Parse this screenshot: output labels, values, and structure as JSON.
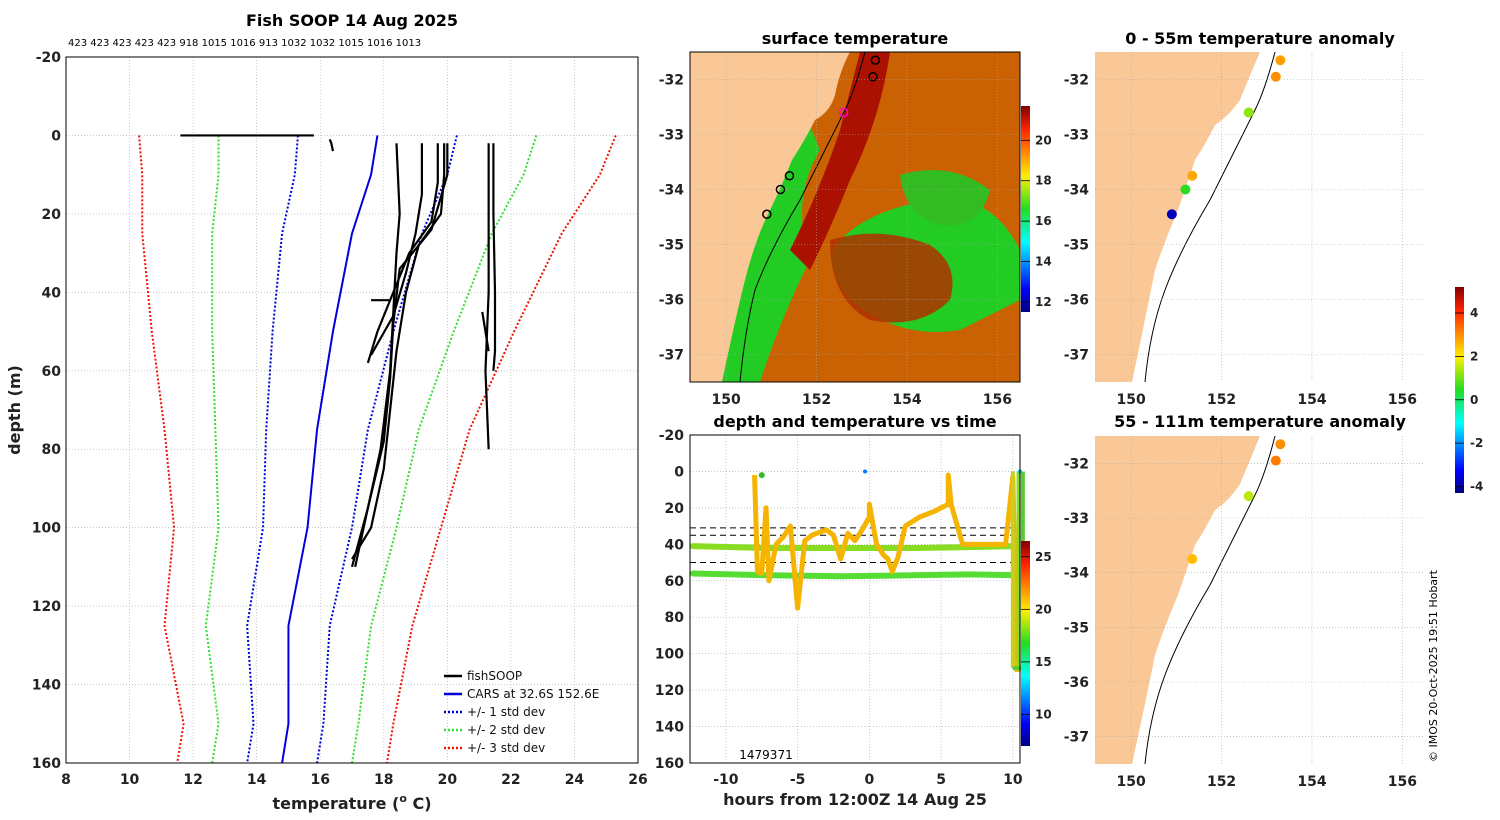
{
  "colors": {
    "land": "#f9c896",
    "black": "#000000",
    "blue": "#0000dd",
    "green": "#33dd33",
    "red": "#ee1100",
    "orange": "#f5b400",
    "axis": "#000000"
  },
  "chart_data": [
    {
      "id": "profile",
      "type": "line",
      "title": "Fish SOOP 14 Aug 2025",
      "subtitle": "423 423 423 423 423 918 1015 1016 913 1032 1032 1015 1016 1013",
      "xlabel": "temperature (o C)",
      "xlabel_main": "temperature (",
      "xlabel_sup": "o",
      "xlabel_end": " C)",
      "ylabel": "depth (m)",
      "xlim": [
        8,
        26
      ],
      "ylim": [
        160,
        -20
      ],
      "xticks": [
        8,
        10,
        12,
        14,
        16,
        18,
        20,
        22,
        24,
        26
      ],
      "yticks": [
        -20,
        0,
        20,
        40,
        60,
        80,
        100,
        120,
        140,
        160
      ],
      "legend": [
        "fishSOOP",
        "CARS at 32.6S 152.6E",
        "+/- 1 std dev",
        "+/- 2 std dev",
        "+/- 3 std dev"
      ],
      "legend_position": "bottom-right",
      "depths": [
        0,
        10,
        25,
        50,
        75,
        100,
        125,
        150,
        160
      ],
      "cars": [
        17.8,
        17.6,
        17.0,
        16.4,
        15.9,
        15.6,
        15.0,
        15.0,
        14.8
      ],
      "std1": [
        2.5,
        2.4,
        2.2,
        1.9,
        1.6,
        1.4,
        1.3,
        1.1,
        1.1
      ],
      "fishsoop_profiles": [
        {
          "depth": [
            0,
            0
          ],
          "temp": [
            11.6,
            15.8
          ]
        },
        {
          "depth": [
            1,
            2,
            4
          ],
          "temp": [
            16.3,
            16.35,
            16.4
          ]
        },
        {
          "depth": [
            2,
            20,
            30,
            45,
            60,
            80,
            95,
            110
          ],
          "temp": [
            18.4,
            18.5,
            18.4,
            18.3,
            18.2,
            17.9,
            17.5,
            17.0
          ]
        },
        {
          "depth": [
            2,
            10,
            20,
            28,
            40,
            55,
            70,
            85,
            100,
            108
          ],
          "temp": [
            19.9,
            19.9,
            19.8,
            19.1,
            18.7,
            18.4,
            18.2,
            18.0,
            17.6,
            17.0
          ]
        },
        {
          "depth": [
            2,
            12,
            22,
            30,
            38,
            50,
            58
          ],
          "temp": [
            19.7,
            19.7,
            19.5,
            18.8,
            18.4,
            17.8,
            17.5
          ]
        },
        {
          "depth": [
            2,
            10,
            24,
            34,
            48,
            62,
            78,
            95,
            110
          ],
          "temp": [
            20.0,
            20.0,
            19.5,
            18.5,
            18.3,
            18.2,
            18.0,
            17.5,
            17.1
          ]
        },
        {
          "depth": [
            2,
            15,
            25,
            35,
            46,
            56
          ],
          "temp": [
            19.2,
            19.2,
            19.0,
            18.7,
            18.3,
            17.6
          ]
        },
        {
          "depth": [
            42,
            42
          ],
          "temp": [
            17.6,
            18.2
          ]
        },
        {
          "depth": [
            2,
            20,
            40,
            60,
            80
          ],
          "temp": [
            21.3,
            21.3,
            21.3,
            21.2,
            21.3
          ]
        },
        {
          "depth": [
            2,
            20,
            40,
            55,
            60
          ],
          "temp": [
            21.45,
            21.45,
            21.5,
            21.5,
            21.45
          ]
        },
        {
          "depth": [
            45,
            55
          ],
          "temp": [
            21.1,
            21.3
          ]
        }
      ]
    },
    {
      "id": "surface",
      "type": "heatmap",
      "title": "surface temperature",
      "xlim": [
        149.2,
        156.5
      ],
      "ylim": [
        -37.5,
        -31.5
      ],
      "xticks": [
        150,
        152,
        154,
        156
      ],
      "yticks": [
        -32,
        -33,
        -34,
        -35,
        -36,
        -37
      ],
      "colorbar_ticks": [
        12,
        14,
        16,
        18,
        20
      ],
      "colorbar_range": [
        11.5,
        21.7
      ],
      "stations": [
        {
          "lon": 153.3,
          "lat": -31.65
        },
        {
          "lon": 153.25,
          "lat": -31.95
        },
        {
          "lon": 152.6,
          "lat": -32.6
        },
        {
          "lon": 151.4,
          "lat": -33.75
        },
        {
          "lon": 151.2,
          "lat": -34.0
        },
        {
          "lon": 150.9,
          "lat": -34.45
        }
      ]
    },
    {
      "id": "time",
      "type": "scatter",
      "title": "depth and temperature vs time",
      "xlabel": "hours from 12:00Z 14 Aug 25",
      "xlim": [
        -12.5,
        10.5
      ],
      "ylim": [
        160,
        -20
      ],
      "xticks": [
        -10,
        -5,
        0,
        5,
        10
      ],
      "yticks": [
        -20,
        0,
        20,
        40,
        60,
        80,
        100,
        120,
        140,
        160
      ],
      "colorbar_ticks": [
        10,
        15,
        20,
        25
      ],
      "colorbar_range": [
        7,
        26.5
      ],
      "annotation": "1479371",
      "dashed_depths": [
        31,
        35,
        50
      ]
    },
    {
      "id": "anom1",
      "type": "scatter",
      "title": "0 - 55m temperature anomaly",
      "xlim": [
        149.2,
        156.5
      ],
      "ylim": [
        -37.5,
        -31.5
      ],
      "xticks": [
        150,
        152,
        154,
        156
      ],
      "yticks": [
        -32,
        -33,
        -34,
        -35,
        -36,
        -37
      ],
      "points": [
        {
          "lon": 153.3,
          "lat": -31.65,
          "anom": 2.8
        },
        {
          "lon": 153.2,
          "lat": -31.95,
          "anom": 3.0
        },
        {
          "lon": 152.6,
          "lat": -32.6,
          "anom": 1.2
        },
        {
          "lon": 151.35,
          "lat": -33.75,
          "anom": 2.7
        },
        {
          "lon": 151.2,
          "lat": -34.0,
          "anom": 0.5
        },
        {
          "lon": 150.9,
          "lat": -34.45,
          "anom": -3.8
        }
      ]
    },
    {
      "id": "anom2",
      "type": "scatter",
      "title": "55 - 111m temperature anomaly",
      "xlim": [
        149.2,
        156.5
      ],
      "ylim": [
        -37.5,
        -31.5
      ],
      "xticks": [
        150,
        152,
        154,
        156
      ],
      "yticks": [
        -32,
        -33,
        -34,
        -35,
        -36,
        -37
      ],
      "points": [
        {
          "lon": 153.3,
          "lat": -31.65,
          "anom": 3.0
        },
        {
          "lon": 153.2,
          "lat": -31.95,
          "anom": 3.2
        },
        {
          "lon": 152.6,
          "lat": -32.6,
          "anom": 1.5
        },
        {
          "lon": 151.35,
          "lat": -33.75,
          "anom": 2.5
        }
      ]
    }
  ],
  "anomaly_colorbar": {
    "ticks": [
      4,
      2,
      0,
      -2,
      -4
    ],
    "range": [
      -4.3,
      5.2
    ]
  },
  "credit": "© IMOS 20-Oct-2025 19:51 Hobart"
}
